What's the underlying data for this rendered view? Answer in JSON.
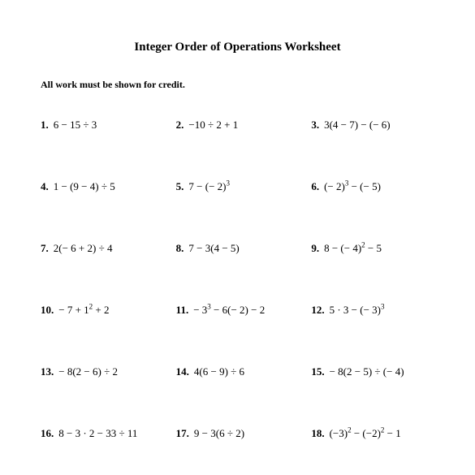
{
  "title": "Integer Order of Operations Worksheet",
  "instruction": "All work must be shown for credit.",
  "problems": [
    {
      "num": "1.",
      "expr": "6 − 15 ÷ 3"
    },
    {
      "num": "2.",
      "expr": "−10 ÷ 2 + 1"
    },
    {
      "num": "3.",
      "expr": "3(4 − 7) − (− 6)"
    },
    {
      "num": "4.",
      "expr": "1 − (9 − 4) ÷ 5"
    },
    {
      "num": "5.",
      "expr": "7 − (− 2)<sup>3</sup>"
    },
    {
      "num": "6.",
      "expr": "(− 2)<sup>3</sup> − (− 5)"
    },
    {
      "num": "7.",
      "expr": "2(− 6 + 2) ÷ 4"
    },
    {
      "num": "8.",
      "expr": "7 − 3(4 − 5)"
    },
    {
      "num": "9.",
      "expr": "8 − (− 4)<sup>2</sup> − 5"
    },
    {
      "num": "10.",
      "expr": "− 7 + 1<sup>2</sup> + 2"
    },
    {
      "num": "11.",
      "expr": "− 3<sup>3</sup> − 6(− 2) − 2"
    },
    {
      "num": "12.",
      "expr": "5 · 3 − (− 3)<sup>3</sup>"
    },
    {
      "num": "13.",
      "expr": "− 8(2 − 6) ÷ 2"
    },
    {
      "num": "14.",
      "expr": "4(6 − 9) ÷ 6"
    },
    {
      "num": "15.",
      "expr": "− 8(2 − 5) ÷ (− 4)"
    },
    {
      "num": "16.",
      "expr": "8 − 3 · 2 − 33 ÷ 11"
    },
    {
      "num": "17.",
      "expr": "9 − 3(6 ÷ 2)"
    },
    {
      "num": "18.",
      "expr": "(−3)<sup>2</sup> − (−2)<sup>2</sup> − 1"
    }
  ],
  "style": {
    "background_color": "#ffffff",
    "text_color": "#000000",
    "font_family": "Times New Roman",
    "title_fontsize": 15,
    "body_fontsize": 13,
    "instruction_fontsize": 12,
    "columns": 3,
    "row_gap": 60
  }
}
